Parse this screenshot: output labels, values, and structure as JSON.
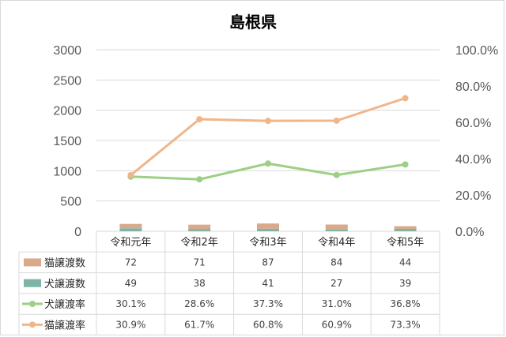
{
  "chart_data": {
    "type": "bar",
    "title": "島根県",
    "categories": [
      "令和元年",
      "令和2年",
      "令和3年",
      "令和4年",
      "令和5年"
    ],
    "ylim": [
      0,
      3000
    ],
    "y2lim": [
      0,
      100
    ],
    "yticks": [
      "0",
      "500",
      "1000",
      "1500",
      "2000",
      "2500",
      "3000"
    ],
    "y2ticks": [
      "0.0%",
      "20.0%",
      "40.0%",
      "60.0%",
      "80.0%",
      "100.0%"
    ],
    "grid": true,
    "series": [
      {
        "name": "猫譲渡数",
        "type": "bar",
        "axis": "left",
        "color": "#d9a98a",
        "values": [
          72,
          71,
          87,
          84,
          44
        ],
        "labels": [
          "72",
          "71",
          "87",
          "84",
          "44"
        ]
      },
      {
        "name": "犬譲渡数",
        "type": "bar",
        "axis": "left",
        "color": "#7fb3a6",
        "values": [
          49,
          38,
          41,
          27,
          39
        ],
        "labels": [
          "49",
          "38",
          "41",
          "27",
          "39"
        ]
      },
      {
        "name": "犬譲渡率",
        "type": "line",
        "axis": "right",
        "color": "#9dcf84",
        "values": [
          30.1,
          28.6,
          37.3,
          31.0,
          36.8
        ],
        "labels": [
          "30.1%",
          "28.6%",
          "37.3%",
          "31.0%",
          "36.8%"
        ]
      },
      {
        "name": "猫譲渡率",
        "type": "line",
        "axis": "right",
        "color": "#f0b68a",
        "values": [
          30.9,
          61.7,
          60.8,
          60.9,
          73.3
        ],
        "labels": [
          "30.9%",
          "61.7%",
          "60.8%",
          "60.9%",
          "73.3%"
        ]
      }
    ]
  }
}
